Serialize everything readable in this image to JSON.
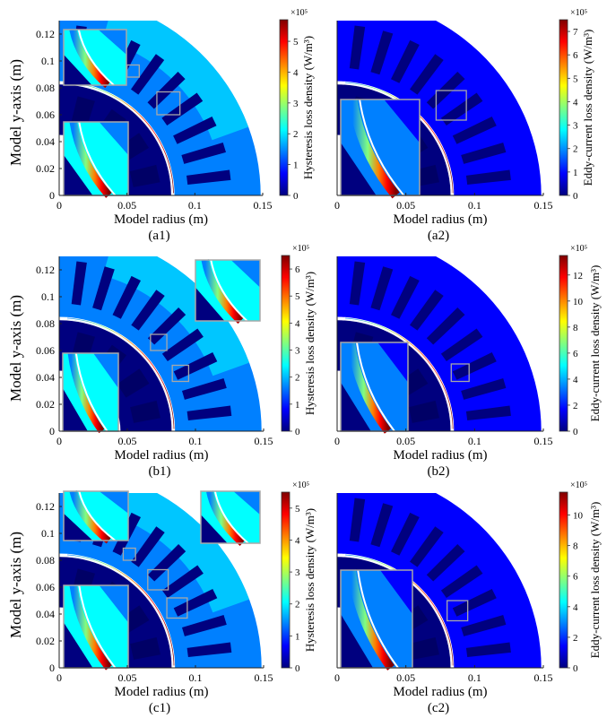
{
  "figure": {
    "colors": {
      "colormap": [
        "#00007f",
        "#0000ff",
        "#0080ff",
        "#00ffff",
        "#80ff80",
        "#ffff00",
        "#ff8000",
        "#ff0000",
        "#7f0000"
      ],
      "inset_border": "#a8a8a8",
      "air_gap_line": "#ffffff",
      "slot_fill": "#00007f"
    }
  },
  "chart_data": [
    {
      "id": "a1",
      "panel_label": "(a1)",
      "type": "heatmap",
      "xlabel": "Model radius (m)",
      "ylabel": "Model y-axis (m)",
      "xlim": [
        0,
        0.15
      ],
      "ylim": [
        0,
        0.13
      ],
      "xticks": [
        "0",
        "0.05",
        "0.1",
        "0.15"
      ],
      "yticks": [
        "0",
        "0.02",
        "0.04",
        "0.06",
        "0.08",
        "0.1",
        "0.12"
      ],
      "colorbar": {
        "label": "Hysteresis loss density (W/m³)",
        "multiplier": "×10⁵",
        "max": 5.7,
        "ticks": [
          "0",
          "1",
          "2",
          "3",
          "4",
          "5"
        ]
      },
      "insets": 2
    },
    {
      "id": "a2",
      "panel_label": "(a2)",
      "type": "heatmap",
      "xlabel": "Model radius (m)",
      "ylabel": "",
      "xlim": [
        0,
        0.15
      ],
      "ylim": [
        0,
        0.13
      ],
      "xticks": [
        "0",
        "0.05",
        "0.1",
        "0.15"
      ],
      "yticks": [],
      "colorbar": {
        "label": "Eddy-current loss density (W/m³)",
        "multiplier": "×10⁵",
        "max": 7.5,
        "ticks": [
          "0",
          "1",
          "2",
          "3",
          "4",
          "5",
          "6",
          "7"
        ]
      },
      "insets": 1
    },
    {
      "id": "b1",
      "panel_label": "(b1)",
      "type": "heatmap",
      "xlabel": "Model radius (m)",
      "ylabel": "Model y-axis (m)",
      "xlim": [
        0,
        0.15
      ],
      "ylim": [
        0,
        0.13
      ],
      "xticks": [
        "0",
        "0.05",
        "0.1",
        "0.15"
      ],
      "yticks": [
        "0",
        "0.02",
        "0.04",
        "0.06",
        "0.08",
        "0.1",
        "0.12"
      ],
      "colorbar": {
        "label": "Hysteresis loss density (W/m³)",
        "multiplier": "×10⁵",
        "max": 6.5,
        "ticks": [
          "0",
          "1",
          "2",
          "3",
          "4",
          "5",
          "6"
        ]
      },
      "insets": 2
    },
    {
      "id": "b2",
      "panel_label": "(b2)",
      "type": "heatmap",
      "xlabel": "Model radius (m)",
      "ylabel": "",
      "xlim": [
        0,
        0.15
      ],
      "ylim": [
        0,
        0.13
      ],
      "xticks": [
        "0",
        "0.05",
        "0.1",
        "0.15"
      ],
      "yticks": [],
      "colorbar": {
        "label": "Eddy-current loss density (W/m³)",
        "multiplier": "×10⁵",
        "max": 13.5,
        "ticks": [
          "0",
          "2",
          "4",
          "6",
          "8",
          "10",
          "12"
        ]
      },
      "insets": 1
    },
    {
      "id": "c1",
      "panel_label": "(c1)",
      "type": "heatmap",
      "xlabel": "Model radius (m)",
      "ylabel": "Model y-axis (m)",
      "xlim": [
        0,
        0.15
      ],
      "ylim": [
        0,
        0.13
      ],
      "xticks": [
        "0",
        "0.05",
        "0.1",
        "0.15"
      ],
      "yticks": [
        "0",
        "0.02",
        "0.04",
        "0.06",
        "0.08",
        "0.1",
        "0.12"
      ],
      "colorbar": {
        "label": "Hysteresis loss density (W/m³)",
        "multiplier": "×10⁵",
        "max": 5.5,
        "ticks": [
          "0",
          "1",
          "2",
          "3",
          "4",
          "5"
        ]
      },
      "insets": 3
    },
    {
      "id": "c2",
      "panel_label": "(c2)",
      "type": "heatmap",
      "xlabel": "Model radius (m)",
      "ylabel": "",
      "xlim": [
        0,
        0.15
      ],
      "ylim": [
        0,
        0.13
      ],
      "xticks": [
        "0",
        "0.05",
        "0.1",
        "0.15"
      ],
      "yticks": [],
      "colorbar": {
        "label": "Eddy-current loss density (W/m³)",
        "multiplier": "×10⁵",
        "max": 11.5,
        "ticks": [
          "0",
          "2",
          "4",
          "6",
          "8",
          "10"
        ]
      },
      "insets": 1
    }
  ]
}
